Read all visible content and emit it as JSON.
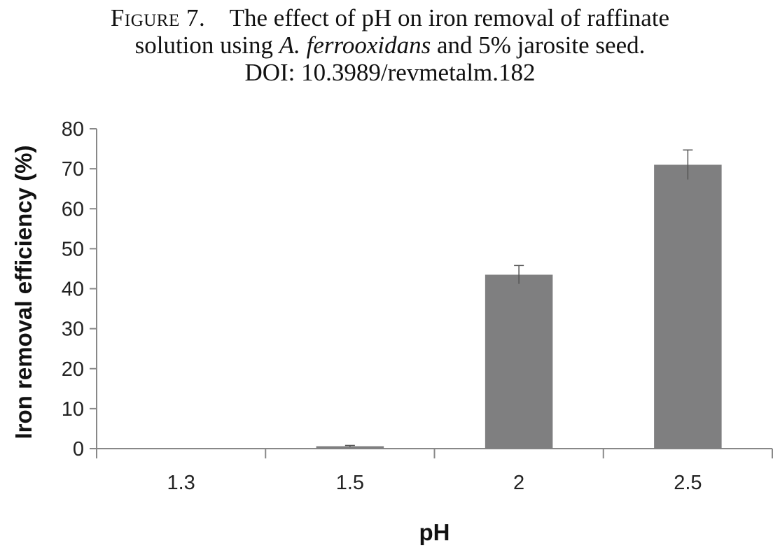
{
  "caption": {
    "figure_label": "Figure 7.",
    "line1_text": "The effect of pH on iron removal of raffinate",
    "line2_pre": "solution using",
    "line2_species": "A. ferrooxidans",
    "line2_post": "and 5% jarosite seed.",
    "line3": "DOI: 10.3989/revmetalm.182"
  },
  "chart_data": {
    "type": "bar",
    "title": "",
    "xlabel": "pH",
    "ylabel": "Iron removal efficiency (%)",
    "categories": [
      "1.3",
      "1.5",
      "2",
      "2.5"
    ],
    "values": [
      0,
      0.6,
      43.5,
      71
    ],
    "errors": [
      0,
      0.2,
      2.3,
      3.7
    ],
    "ylim": [
      0,
      80
    ],
    "yticks": [
      0,
      10,
      20,
      30,
      40,
      50,
      60,
      70,
      80
    ],
    "grid": false,
    "legend": "none",
    "colors": {
      "bar": "#7f7f80",
      "axis": "#888888",
      "error_bar": "#555555"
    }
  }
}
